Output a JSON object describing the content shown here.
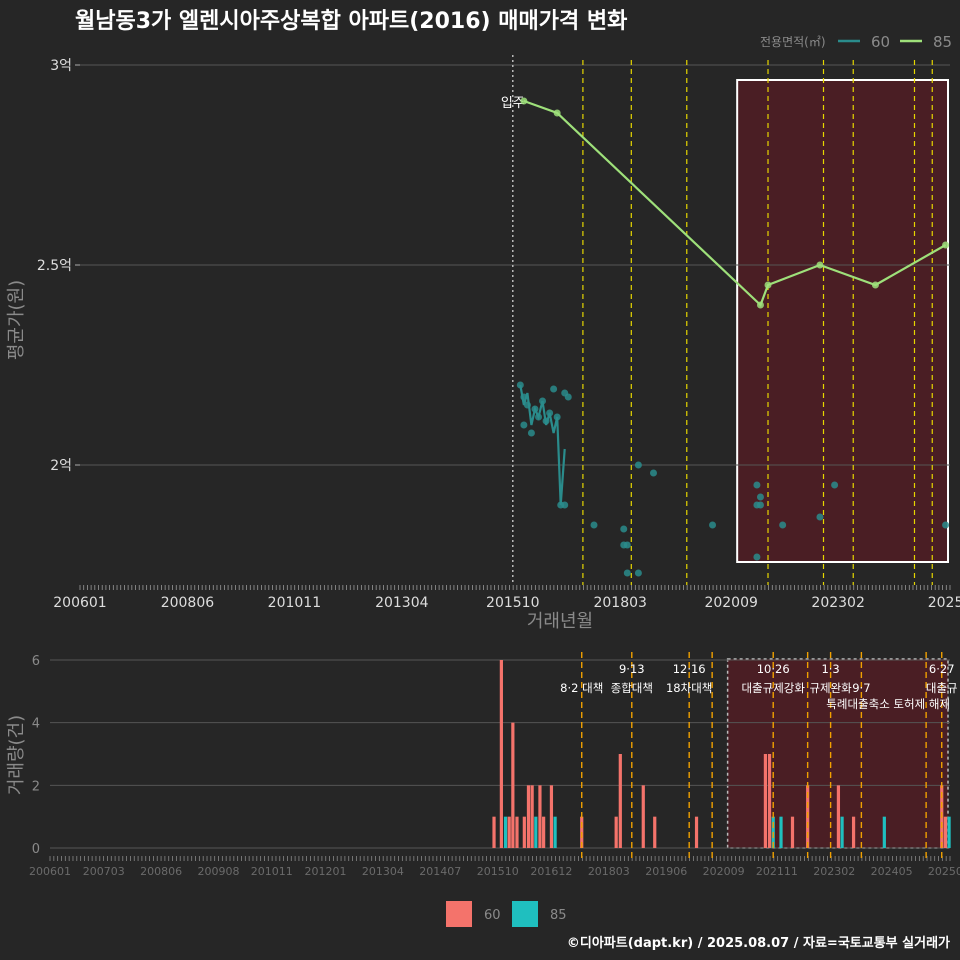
{
  "title": "월남동3가 엘렌시아주상복합 아파트(2016) 매매가격 변화",
  "legend_title": "전용면적(㎡)",
  "footer": "©디아파트(dapt.kr) / 2025.08.07 / 자료=국토교통부 실거래가",
  "colors": {
    "bg": "#262626",
    "series60_line": "#2a8c8c",
    "series85_line": "#9ee07a",
    "bar60": "#f4736b",
    "bar85": "#1fbfbf",
    "highlight_fill": "#4a1e24",
    "vline_yellow": "#e6d700",
    "vline_orange": "#f0a000",
    "grid": "#555555",
    "text_light": "#dddddd",
    "text_dim": "#8a8a8a"
  },
  "chart_data": [
    {
      "type": "line",
      "title": "월남동3가 엘렌시아주상복합 아파트(2016) 매매가격 변화",
      "xlabel": "거래년월",
      "ylabel": "평균가(원)",
      "ylim": [
        1.7,
        3.0
      ],
      "xlim": [
        2006.0,
        2025.6
      ],
      "y_ticks": [
        {
          "value": 3.0,
          "label": "3억"
        },
        {
          "value": 2.5,
          "label": "2.5억"
        },
        {
          "value": 2.0,
          "label": "2억"
        }
      ],
      "x_ticks": [
        {
          "value": 2006.0,
          "label": "200601"
        },
        {
          "value": 2008.42,
          "label": "200806"
        },
        {
          "value": 2010.83,
          "label": "201011"
        },
        {
          "value": 2013.25,
          "label": "201304"
        },
        {
          "value": 2015.75,
          "label": "201510"
        },
        {
          "value": 2018.17,
          "label": "201803"
        },
        {
          "value": 2020.67,
          "label": "202009"
        },
        {
          "value": 2023.08,
          "label": "202302"
        },
        {
          "value": 2025.5,
          "label": "2025"
        }
      ],
      "legend": [
        {
          "name": "60"
        },
        {
          "name": "85"
        }
      ],
      "annotation": {
        "label": "입주",
        "x": 2015.75
      },
      "highlight_range": [
        2020.67,
        2025.6
      ],
      "vlines": [
        2017.33,
        2018.42,
        2019.67,
        2021.5,
        2022.75,
        2023.42,
        2024.8,
        2025.2
      ],
      "series": [
        {
          "name": "85",
          "line": [
            [
              2016.0,
              2.91
            ],
            [
              2016.75,
              2.88
            ],
            [
              2021.33,
              2.4
            ],
            [
              2021.5,
              2.45
            ],
            [
              2022.67,
              2.5
            ],
            [
              2023.92,
              2.45
            ],
            [
              2025.5,
              2.55
            ]
          ],
          "points": [
            [
              2016.0,
              2.91
            ],
            [
              2016.75,
              2.88
            ],
            [
              2021.33,
              2.4
            ],
            [
              2021.5,
              2.45
            ],
            [
              2022.67,
              2.5
            ],
            [
              2023.92,
              2.45
            ],
            [
              2025.5,
              2.55
            ]
          ]
        },
        {
          "name": "60",
          "line": [
            [
              2015.92,
              2.2
            ],
            [
              2016.0,
              2.15
            ],
            [
              2016.08,
              2.18
            ],
            [
              2016.17,
              2.1
            ],
            [
              2016.25,
              2.14
            ],
            [
              2016.33,
              2.12
            ],
            [
              2016.42,
              2.16
            ],
            [
              2016.5,
              2.1
            ],
            [
              2016.58,
              2.13
            ],
            [
              2016.67,
              2.08
            ],
            [
              2016.75,
              2.12
            ],
            [
              2016.83,
              1.9
            ],
            [
              2016.92,
              2.04
            ]
          ],
          "points": [
            [
              2015.92,
              2.2
            ],
            [
              2016.0,
              2.17
            ],
            [
              2016.0,
              2.1
            ],
            [
              2016.08,
              2.15
            ],
            [
              2016.17,
              2.08
            ],
            [
              2016.25,
              2.14
            ],
            [
              2016.33,
              2.12
            ],
            [
              2016.42,
              2.16
            ],
            [
              2016.5,
              2.11
            ],
            [
              2016.58,
              2.13
            ],
            [
              2016.67,
              2.19
            ],
            [
              2016.75,
              2.12
            ],
            [
              2016.83,
              1.9
            ],
            [
              2016.92,
              2.18
            ],
            [
              2016.92,
              1.9
            ],
            [
              2017.0,
              2.17
            ],
            [
              2017.58,
              1.85
            ],
            [
              2018.25,
              1.8
            ],
            [
              2018.25,
              1.84
            ],
            [
              2018.33,
              1.8
            ],
            [
              2018.33,
              1.73
            ],
            [
              2018.58,
              2.0
            ],
            [
              2018.58,
              1.73
            ],
            [
              2018.92,
              1.98
            ],
            [
              2020.25,
              1.85
            ],
            [
              2021.25,
              1.95
            ],
            [
              2021.25,
              1.9
            ],
            [
              2021.25,
              1.77
            ],
            [
              2021.33,
              1.92
            ],
            [
              2021.33,
              1.9
            ],
            [
              2021.83,
              1.85
            ],
            [
              2022.67,
              1.87
            ],
            [
              2023.0,
              1.95
            ],
            [
              2025.5,
              1.85
            ]
          ]
        }
      ]
    },
    {
      "type": "bar",
      "ylabel": "거래량(건)",
      "ylim": [
        0,
        6
      ],
      "xlim": [
        2006.0,
        2025.6
      ],
      "y_ticks": [
        0,
        2,
        4,
        6
      ],
      "x_ticks": [
        {
          "value": 2006.0,
          "label": "200601"
        },
        {
          "value": 2007.17,
          "label": "200703"
        },
        {
          "value": 2008.42,
          "label": "200806"
        },
        {
          "value": 2009.67,
          "label": "200908"
        },
        {
          "value": 2010.83,
          "label": "201011"
        },
        {
          "value": 2012.0,
          "label": "201201"
        },
        {
          "value": 2013.25,
          "label": "201304"
        },
        {
          "value": 2014.5,
          "label": "201407"
        },
        {
          "value": 2015.75,
          "label": "201510"
        },
        {
          "value": 2016.92,
          "label": "201612"
        },
        {
          "value": 2018.17,
          "label": "201803"
        },
        {
          "value": 2019.42,
          "label": "201906"
        },
        {
          "value": 2020.67,
          "label": "202009"
        },
        {
          "value": 2021.83,
          "label": "202111"
        },
        {
          "value": 2023.08,
          "label": "202302"
        },
        {
          "value": 2024.33,
          "label": "202405"
        },
        {
          "value": 2025.5,
          "label": "20250"
        }
      ],
      "legend": [
        {
          "name": "60"
        },
        {
          "name": "85"
        }
      ],
      "highlight_range": [
        2020.67,
        2025.6
      ],
      "policy_lines": [
        {
          "x": 2017.58,
          "date": "",
          "label": "8·2 대책"
        },
        {
          "x": 2018.67,
          "date": "9·13",
          "label": "종합대책"
        },
        {
          "x": 2019.92,
          "date": "12·16",
          "label": "18차대책"
        },
        {
          "x": 2020.42,
          "date": "",
          "label": ""
        },
        {
          "x": 2021.75,
          "date": "10·26",
          "label": "대출규제강화"
        },
        {
          "x": 2022.5,
          "date": "",
          "label": ""
        },
        {
          "x": 2023.0,
          "date": "1·3",
          "label": "규제완화"
        },
        {
          "x": 2023.67,
          "date": "",
          "label": "9·7"
        },
        {
          "x": 2025.08,
          "date": "",
          "label": ""
        },
        {
          "x": 2025.42,
          "date": "6·27",
          "label": "대출규"
        }
      ],
      "policy_sub_labels": [
        {
          "x": 2023.6,
          "label": "특례대출축소 토허제 해제"
        }
      ],
      "series": [
        {
          "name": "60",
          "points": [
            [
              2015.67,
              1
            ],
            [
              2015.83,
              6
            ],
            [
              2016.0,
              1
            ],
            [
              2016.08,
              4
            ],
            [
              2016.17,
              1
            ],
            [
              2016.33,
              1
            ],
            [
              2016.42,
              2
            ],
            [
              2016.5,
              2
            ],
            [
              2016.67,
              2
            ],
            [
              2016.75,
              1
            ],
            [
              2016.92,
              2
            ],
            [
              2017.58,
              1
            ],
            [
              2018.33,
              1
            ],
            [
              2018.42,
              3
            ],
            [
              2018.92,
              2
            ],
            [
              2019.17,
              1
            ],
            [
              2020.08,
              1
            ],
            [
              2021.58,
              3
            ],
            [
              2021.67,
              3
            ],
            [
              2022.17,
              1
            ],
            [
              2022.5,
              2
            ],
            [
              2023.17,
              2
            ],
            [
              2023.5,
              1
            ],
            [
              2025.42,
              2
            ],
            [
              2025.5,
              1
            ]
          ]
        },
        {
          "name": "85",
          "points": [
            [
              2015.92,
              1
            ],
            [
              2016.58,
              1
            ],
            [
              2017.0,
              1
            ],
            [
              2021.75,
              1
            ],
            [
              2021.92,
              1
            ],
            [
              2023.25,
              1
            ],
            [
              2024.17,
              1
            ],
            [
              2025.58,
              1
            ]
          ]
        }
      ]
    }
  ]
}
